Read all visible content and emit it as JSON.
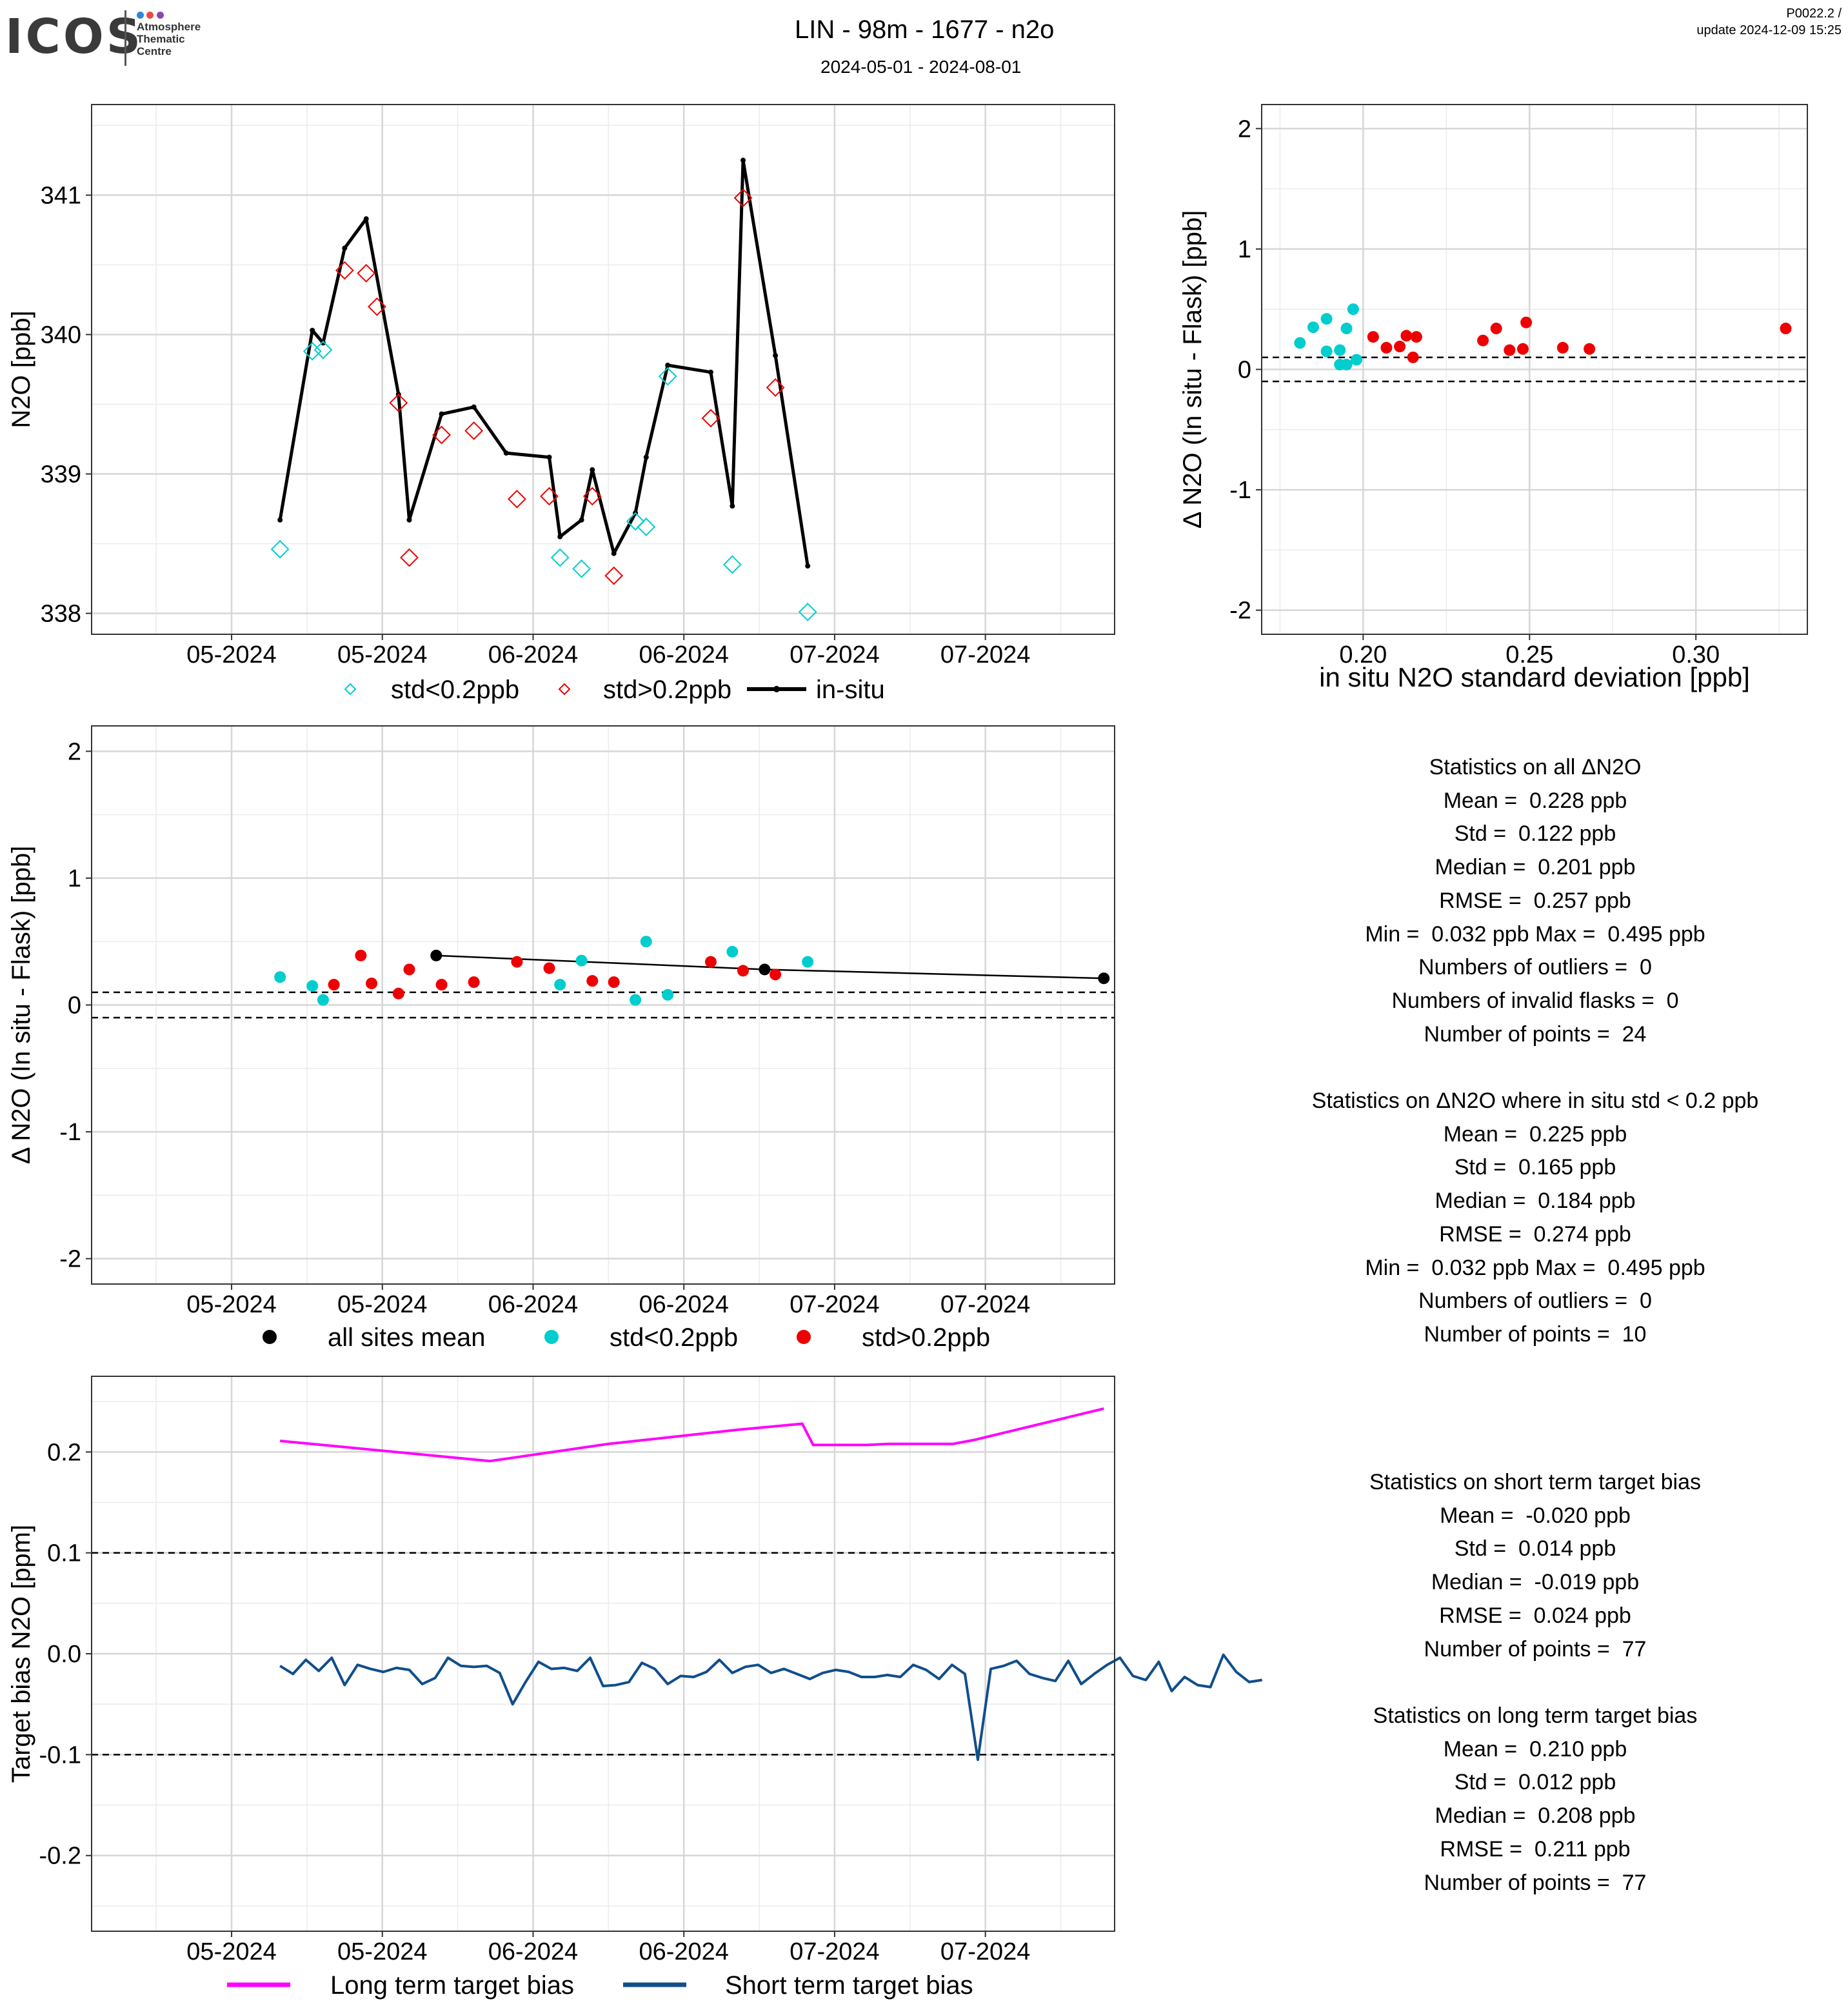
{
  "header": {
    "logo_text": "ICOS",
    "logo_sub": [
      "Atmosphere",
      "Thematic",
      "Centre"
    ],
    "title": "LIN - 98m - 1677 - n2o",
    "subtitle": "2024-05-01 - 2024-08-01",
    "corner_line1": "P0022.2 /",
    "corner_line2": "update  2024-12-09 15:25"
  },
  "colors": {
    "low_std": "#00CDCD",
    "high_std": "#EE0000",
    "insitu": "#000000",
    "long_bias": "#FF00FF",
    "short_bias": "#104E8B",
    "logo_dots": [
      "#2E86DE",
      "#E74C3C",
      "#8E44AD"
    ]
  },
  "chart_data": [
    {
      "id": "timeseries",
      "type": "line",
      "ylabel": "N2O [ppb]",
      "xlabel": "",
      "xlim": [
        "2024-04-25",
        "2024-07-29"
      ],
      "ylim": [
        337.85,
        341.65
      ],
      "x_ticks": [
        {
          "x": "2024-05-08",
          "label": "05-2024"
        },
        {
          "x": "2024-05-22",
          "label": "05-2024"
        },
        {
          "x": "2024-06-05",
          "label": "06-2024"
        },
        {
          "x": "2024-06-19",
          "label": "06-2024"
        },
        {
          "x": "2024-07-03",
          "label": "07-2024"
        },
        {
          "x": "2024-07-17",
          "label": "07-2024"
        }
      ],
      "y_ticks": [
        338,
        339,
        340,
        341
      ],
      "legend": [
        "std<0.2ppb",
        "std>0.2ppb",
        "in-situ"
      ],
      "legend_position": "bottom",
      "series": [
        {
          "name": "in-situ",
          "points": [
            [
              "2024-05-12 12:00",
              338.67
            ],
            [
              "2024-05-15 12:00",
              340.03
            ],
            [
              "2024-05-16 12:00",
              339.94
            ],
            [
              "2024-05-18 12:00",
              340.62
            ],
            [
              "2024-05-20 12:00",
              340.83
            ],
            [
              "2024-05-23 12:00",
              339.57
            ],
            [
              "2024-05-24 12:00",
              338.67
            ],
            [
              "2024-05-27 12:00",
              339.43
            ],
            [
              "2024-05-30 12:00",
              339.48
            ],
            [
              "2024-06-02 12:00",
              339.15
            ],
            [
              "2024-06-06 12:00",
              339.12
            ],
            [
              "2024-06-07 12:00",
              338.55
            ],
            [
              "2024-06-09 12:00",
              338.67
            ],
            [
              "2024-06-10 12:00",
              339.03
            ],
            [
              "2024-06-12 12:00",
              338.43
            ],
            [
              "2024-06-14 12:00",
              338.72
            ],
            [
              "2024-06-15 12:00",
              339.12
            ],
            [
              "2024-06-17 12:00",
              339.78
            ],
            [
              "2024-06-21 12:00",
              339.73
            ],
            [
              "2024-06-23 12:00",
              338.77
            ],
            [
              "2024-06-24 12:00",
              341.25
            ],
            [
              "2024-06-27 12:00",
              339.85
            ],
            [
              "2024-06-30 12:00",
              338.34
            ]
          ]
        },
        {
          "name": "std<0.2ppb",
          "points": [
            [
              "2024-05-12 12:00",
              338.46
            ],
            [
              "2024-05-15 12:00",
              339.88
            ],
            [
              "2024-05-16 12:00",
              339.89
            ],
            [
              "2024-06-07 12:00",
              338.4
            ],
            [
              "2024-06-09 12:00",
              338.32
            ],
            [
              "2024-06-14 12:00",
              338.66
            ],
            [
              "2024-06-15 12:00",
              338.62
            ],
            [
              "2024-06-17 12:00",
              339.7
            ],
            [
              "2024-06-23 12:00",
              338.35
            ],
            [
              "2024-06-30 12:00",
              338.01
            ]
          ]
        },
        {
          "name": "std>0.2ppb",
          "points": [
            [
              "2024-05-18 12:00",
              340.46
            ],
            [
              "2024-05-20 12:00",
              340.44
            ],
            [
              "2024-05-21 12:00",
              340.2
            ],
            [
              "2024-05-23 12:00",
              339.51
            ],
            [
              "2024-05-24 12:00",
              338.4
            ],
            [
              "2024-05-27 12:00",
              339.28
            ],
            [
              "2024-05-30 12:00",
              339.31
            ],
            [
              "2024-06-03 12:00",
              338.82
            ],
            [
              "2024-06-06 12:00",
              338.84
            ],
            [
              "2024-06-10 12:00",
              338.84
            ],
            [
              "2024-06-12 12:00",
              338.27
            ],
            [
              "2024-06-21 12:00",
              339.4
            ],
            [
              "2024-06-24 12:00",
              340.98
            ],
            [
              "2024-06-27 12:00",
              339.62
            ]
          ]
        }
      ]
    },
    {
      "id": "std_scatter",
      "type": "scatter",
      "xlabel": "in situ N2O standard deviation [ppb]",
      "ylabel": "Δ N2O (In situ - Flask) [ppb]",
      "xlim": [
        0.1695,
        0.3335
      ],
      "ylim": [
        -2.2,
        2.2
      ],
      "x_ticks": [
        0.2,
        0.25,
        0.3
      ],
      "x_tick_labels": [
        "0.20",
        "0.25",
        "0.30"
      ],
      "y_ticks": [
        -2,
        -1,
        0,
        1,
        2
      ],
      "hlines": [
        0.1,
        -0.1
      ],
      "series": [
        {
          "name": "std<0.2ppb",
          "points": [
            [
              0.181,
              0.22
            ],
            [
              0.185,
              0.35
            ],
            [
              0.189,
              0.42
            ],
            [
              0.189,
              0.15
            ],
            [
              0.193,
              0.16
            ],
            [
              0.193,
              0.04
            ],
            [
              0.195,
              0.34
            ],
            [
              0.195,
              0.04
            ],
            [
              0.197,
              0.5
            ],
            [
              0.198,
              0.08
            ]
          ]
        },
        {
          "name": "std>0.2ppb",
          "points": [
            [
              0.203,
              0.27
            ],
            [
              0.207,
              0.18
            ],
            [
              0.211,
              0.19
            ],
            [
              0.213,
              0.28
            ],
            [
              0.215,
              0.1
            ],
            [
              0.216,
              0.27
            ],
            [
              0.236,
              0.24
            ],
            [
              0.24,
              0.34
            ],
            [
              0.244,
              0.16
            ],
            [
              0.248,
              0.17
            ],
            [
              0.249,
              0.39
            ],
            [
              0.26,
              0.18
            ],
            [
              0.268,
              0.17
            ],
            [
              0.327,
              0.34
            ]
          ]
        }
      ]
    },
    {
      "id": "delta_timeseries",
      "type": "scatter",
      "xlabel": "",
      "ylabel": "Δ N2O (In situ - Flask) [ppb]",
      "xlim": [
        "2024-04-25",
        "2024-07-29"
      ],
      "ylim": [
        -2.2,
        2.2
      ],
      "y_ticks": [
        -2,
        -1,
        0,
        1,
        2
      ],
      "x_ticks": [
        {
          "x": "2024-05-08",
          "label": "05-2024"
        },
        {
          "x": "2024-05-22",
          "label": "05-2024"
        },
        {
          "x": "2024-06-05",
          "label": "06-2024"
        },
        {
          "x": "2024-06-19",
          "label": "06-2024"
        },
        {
          "x": "2024-07-03",
          "label": "07-2024"
        },
        {
          "x": "2024-07-17",
          "label": "07-2024"
        }
      ],
      "hlines": [
        0.1,
        -0.1
      ],
      "legend": [
        "all sites mean",
        "std<0.2ppb",
        "std>0.2ppb"
      ],
      "legend_position": "bottom",
      "series": [
        {
          "name": "all sites mean",
          "points": [
            [
              "2024-05-27",
              0.39
            ],
            [
              "2024-06-26 12:00",
              0.28
            ],
            [
              "2024-07-28",
              0.21
            ]
          ]
        },
        {
          "name": "std<0.2ppb",
          "points": [
            [
              "2024-05-12 12:00",
              0.22
            ],
            [
              "2024-05-15 12:00",
              0.15
            ],
            [
              "2024-05-16 12:00",
              0.04
            ],
            [
              "2024-06-07 12:00",
              0.16
            ],
            [
              "2024-06-09 12:00",
              0.35
            ],
            [
              "2024-06-14 12:00",
              0.04
            ],
            [
              "2024-06-15 12:00",
              0.5
            ],
            [
              "2024-06-17 12:00",
              0.08
            ],
            [
              "2024-06-23 12:00",
              0.42
            ],
            [
              "2024-06-30 12:00",
              0.34
            ]
          ]
        },
        {
          "name": "std>0.2ppb",
          "points": [
            [
              "2024-05-17 12:00",
              0.16
            ],
            [
              "2024-05-20",
              0.39
            ],
            [
              "2024-05-21",
              0.17
            ],
            [
              "2024-05-23 12:00",
              0.09
            ],
            [
              "2024-05-24 12:00",
              0.28
            ],
            [
              "2024-05-27 12:00",
              0.16
            ],
            [
              "2024-05-30 12:00",
              0.18
            ],
            [
              "2024-06-03 12:00",
              0.34
            ],
            [
              "2024-06-06 12:00",
              0.29
            ],
            [
              "2024-06-10 12:00",
              0.19
            ],
            [
              "2024-06-12 12:00",
              0.18
            ],
            [
              "2024-06-21 12:00",
              0.34
            ],
            [
              "2024-06-24 12:00",
              0.27
            ],
            [
              "2024-06-27 12:00",
              0.24
            ]
          ]
        }
      ]
    },
    {
      "id": "target_bias",
      "type": "line",
      "xlabel": "",
      "ylabel": "Target bias N2O [ppm]",
      "xlim": [
        "2024-04-25",
        "2024-07-29"
      ],
      "ylim": [
        -0.275,
        0.275
      ],
      "y_ticks": [
        -0.2,
        -0.1,
        0.0,
        0.1,
        0.2
      ],
      "y_tick_labels": [
        "-0.2",
        "-0.1",
        "0.0",
        "0.1",
        "0.2"
      ],
      "x_ticks": [
        {
          "x": "2024-05-08",
          "label": "05-2024"
        },
        {
          "x": "2024-05-22",
          "label": "05-2024"
        },
        {
          "x": "2024-06-05",
          "label": "06-2024"
        },
        {
          "x": "2024-06-19",
          "label": "06-2024"
        },
        {
          "x": "2024-07-03",
          "label": "07-2024"
        },
        {
          "x": "2024-07-17",
          "label": "07-2024"
        }
      ],
      "hlines": [
        0.1,
        -0.1
      ],
      "legend": [
        "Long term target bias",
        "Short term target bias"
      ],
      "legend_position": "bottom",
      "series": [
        {
          "name": "Long term target bias",
          "points": [
            [
              "2024-05-12 12:00",
              0.211
            ],
            [
              "2024-06-01",
              0.191
            ],
            [
              "2024-06-12",
              0.208
            ],
            [
              "2024-06-24",
              0.222
            ],
            [
              "2024-06-30",
              0.228
            ],
            [
              "2024-07-01",
              0.207
            ],
            [
              "2024-07-06",
              0.207
            ],
            [
              "2024-07-08",
              0.208
            ],
            [
              "2024-07-14",
              0.208
            ],
            [
              "2024-07-16",
              0.212
            ],
            [
              "2024-07-28",
              0.243
            ]
          ]
        },
        {
          "name": "Short term target bias",
          "start": "2024-05-12 12:00",
          "step_days": 1.2,
          "values": [
            -0.012,
            -0.02,
            -0.006,
            -0.017,
            -0.004,
            -0.031,
            -0.011,
            -0.015,
            -0.018,
            -0.014,
            -0.016,
            -0.03,
            -0.024,
            -0.004,
            -0.012,
            -0.013,
            -0.012,
            -0.019,
            -0.05,
            -0.028,
            -0.008,
            -0.015,
            -0.014,
            -0.017,
            -0.004,
            -0.032,
            -0.031,
            -0.028,
            -0.009,
            -0.015,
            -0.03,
            -0.022,
            -0.023,
            -0.018,
            -0.006,
            -0.019,
            -0.013,
            -0.011,
            -0.019,
            -0.015,
            -0.02,
            -0.025,
            -0.019,
            -0.016,
            -0.018,
            -0.023,
            -0.023,
            -0.021,
            -0.023,
            -0.011,
            -0.016,
            -0.025,
            -0.011,
            -0.02,
            -0.105,
            -0.015,
            -0.012,
            -0.007,
            -0.02,
            -0.024,
            -0.027,
            -0.007,
            -0.03,
            -0.02,
            -0.011,
            -0.004,
            -0.022,
            -0.026,
            -0.008,
            -0.037,
            -0.023,
            -0.031,
            -0.033,
            -0.001,
            -0.018,
            -0.028,
            -0.026
          ]
        }
      ]
    }
  ],
  "stats": {
    "all": {
      "title": "Statistics on all ΔN2O",
      "lines": [
        "Mean =  0.228 ppb",
        "Std =  0.122 ppb",
        "Median =  0.201 ppb",
        "RMSE =  0.257 ppb",
        "Min =  0.032 ppb Max =  0.495 ppb",
        "Numbers of outliers =  0",
        "Numbers of invalid flasks =  0",
        "Number of points =  24"
      ]
    },
    "low_std": {
      "title": "Statistics on ΔN2O where in situ std < 0.2 ppb",
      "lines": [
        "Mean =  0.225 ppb",
        "Std =  0.165 ppb",
        "Median =  0.184 ppb",
        "RMSE =  0.274 ppb",
        "Min =  0.032 ppb Max =  0.495 ppb",
        "Numbers of outliers =  0",
        "Number of points =  10"
      ]
    },
    "short_term": {
      "title": "Statistics on short term target bias",
      "lines": [
        "Mean =  -0.020 ppb",
        "Std =  0.014 ppb",
        "Median =  -0.019 ppb",
        "RMSE =  0.024 ppb",
        "Number of points =  77"
      ]
    },
    "long_term": {
      "title": "Statistics on long term target bias",
      "lines": [
        "Mean =  0.210 ppb",
        "Std =  0.012 ppb",
        "Median =  0.208 ppb",
        "RMSE =  0.211 ppb",
        "Number of points =  77"
      ]
    }
  }
}
